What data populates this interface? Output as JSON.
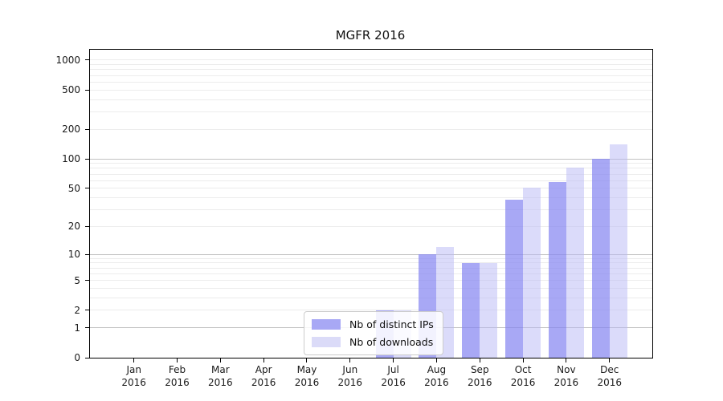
{
  "title": "MGFR 2016",
  "chart_data": {
    "type": "bar",
    "title": "MGFR 2016",
    "categories": [
      "Jan",
      "Feb",
      "Mar",
      "Apr",
      "May",
      "Jun",
      "Jul",
      "Aug",
      "Sep",
      "Oct",
      "Nov",
      "Dec"
    ],
    "year": "2016",
    "series": [
      {
        "name": "Nb of distinct IPs",
        "color": "#a8a8f5",
        "values": [
          0,
          0,
          0,
          0,
          0,
          0,
          2,
          10,
          8,
          38,
          58,
          100
        ]
      },
      {
        "name": "Nb of downloads",
        "color": "#dbdbf8",
        "values": [
          0,
          0,
          0,
          0,
          0,
          0,
          2,
          12,
          8,
          51,
          82,
          140
        ]
      }
    ],
    "y_scale": "log10(value+1)",
    "ylim": [
      0,
      1274
    ],
    "y_ticks": [
      0,
      1,
      2,
      5,
      10,
      20,
      50,
      100,
      200,
      500,
      1000
    ],
    "grid_major": [
      1,
      10,
      100
    ],
    "grid_minor": [
      2,
      3,
      4,
      5,
      6,
      7,
      8,
      9,
      20,
      30,
      40,
      50,
      60,
      70,
      80,
      90,
      200,
      300,
      400,
      500,
      600,
      700,
      800,
      900,
      1000
    ],
    "grid": "horizontal",
    "legend_position": "lower-center-inside",
    "colors": {
      "grid_major": "#c2c2c2",
      "grid_minor": "#ececec",
      "axis": "#000000"
    }
  }
}
